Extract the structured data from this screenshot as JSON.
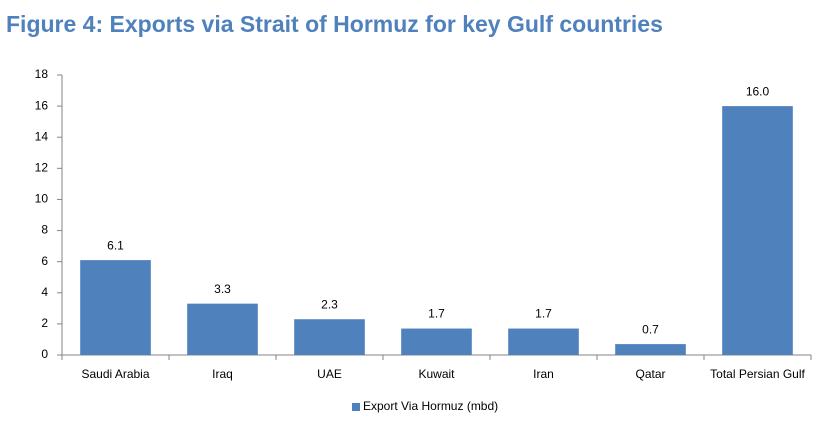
{
  "chart_data": {
    "type": "bar",
    "title": "Figure 4: Exports via Strait of Hormuz for key Gulf countries",
    "categories": [
      "Saudi Arabia",
      "Iraq",
      "UAE",
      "Kuwait",
      "Iran",
      "Qatar",
      "Total Persian Gulf"
    ],
    "series": [
      {
        "name": "Export Via Hormuz (mbd)",
        "color": "#4f81bd",
        "values": [
          6.1,
          3.3,
          2.3,
          1.7,
          1.7,
          0.7,
          16.0
        ],
        "value_labels": [
          "6.1",
          "3.3",
          "2.3",
          "1.7",
          "1.7",
          "0.7",
          "16.0"
        ]
      }
    ],
    "ylim": [
      0,
      18
    ],
    "yticks": [
      0,
      2,
      4,
      6,
      8,
      10,
      12,
      14,
      16,
      18
    ],
    "grid": false,
    "legend": "bottom"
  }
}
